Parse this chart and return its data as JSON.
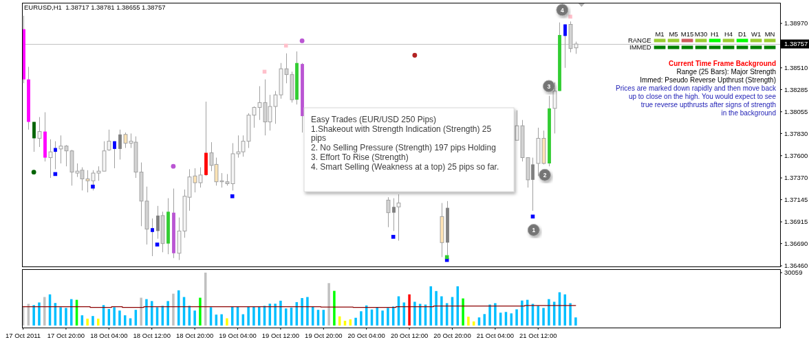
{
  "chart_data": [
    {
      "type": "candlestick",
      "title": "EURUSD,H1  1.38717 1.38781 1.38655 1.38757",
      "x": [
        "2011-10-17T12:00",
        "2011-10-17T13:00",
        "2011-10-17T14:00",
        "2011-10-17T15:00",
        "2011-10-17T16:00",
        "2011-10-17T17:00",
        "2011-10-17T18:00",
        "2011-10-17T19:00",
        "2011-10-17T20:00",
        "2011-10-17T21:00",
        "2011-10-17T22:00",
        "2011-10-17T23:00",
        "2011-10-18T00:00",
        "2011-10-18T01:00",
        "2011-10-18T02:00",
        "2011-10-18T03:00",
        "2011-10-18T04:00",
        "2011-10-18T05:00",
        "2011-10-18T06:00",
        "2011-10-18T07:00",
        "2011-10-18T08:00",
        "2011-10-18T09:00",
        "2011-10-18T10:00",
        "2011-10-18T11:00",
        "2011-10-18T12:00",
        "2011-10-18T13:00",
        "2011-10-18T14:00",
        "2011-10-18T15:00",
        "2011-10-18T16:00",
        "2011-10-18T17:00",
        "2011-10-18T18:00",
        "2011-10-18T19:00",
        "2011-10-18T20:00",
        "2011-10-18T21:00",
        "2011-10-18T22:00",
        "2011-10-18T23:00",
        "2011-10-19T00:00",
        "2011-10-19T01:00",
        "2011-10-19T02:00",
        "2011-10-19T03:00",
        "2011-10-19T04:00",
        "2011-10-19T05:00",
        "2011-10-19T06:00",
        "2011-10-19T07:00",
        "2011-10-19T08:00",
        "2011-10-19T09:00",
        "2011-10-19T10:00",
        "2011-10-19T11:00",
        "2011-10-19T12:00",
        "2011-10-19T13:00",
        "2011-10-19T14:00",
        "2011-10-19T15:00",
        "2011-10-19T16:00",
        "2011-10-20T08:00",
        "2011-10-20T09:00",
        "2011-10-20T10:00",
        "2011-10-20T18:00",
        "2011-10-20T19:00",
        "2011-10-21T08:00",
        "2011-10-21T09:00",
        "2011-10-21T10:00",
        "2011-10-21T11:00",
        "2011-10-21T12:00",
        "2011-10-21T13:00",
        "2011-10-21T14:00",
        "2011-10-21T15:00",
        "2011-10-21T16:00",
        "2011-10-21T17:00",
        "2011-10-21T18:00",
        "2011-10-21T19:00"
      ],
      "ohlc": [
        [
          1.3891,
          1.3905,
          1.3835,
          1.3839
        ],
        [
          1.3839,
          1.3852,
          1.3787,
          1.3795
        ],
        [
          1.3795,
          1.3795,
          1.3764,
          1.3778
        ],
        [
          1.3778,
          1.38,
          1.3769,
          1.3785
        ],
        [
          1.3785,
          1.3805,
          1.3754,
          1.3758
        ],
        [
          1.3758,
          1.3777,
          1.3737,
          1.3764
        ],
        [
          1.3764,
          1.3775,
          1.3746,
          1.3768
        ],
        [
          1.3767,
          1.3781,
          1.3752,
          1.377
        ],
        [
          1.377,
          1.3771,
          1.3749,
          1.3765
        ],
        [
          1.3765,
          1.3766,
          1.3729,
          1.3743
        ],
        [
          1.3742,
          1.3752,
          1.3738,
          1.3744
        ],
        [
          1.3745,
          1.3748,
          1.3724,
          1.3736
        ],
        [
          1.3736,
          1.3745,
          1.3722,
          1.3734
        ],
        [
          1.3734,
          1.3745,
          1.3724,
          1.3742
        ],
        [
          1.3742,
          1.3749,
          1.3734,
          1.3744
        ],
        [
          1.3744,
          1.3775,
          1.3744,
          1.3765
        ],
        [
          1.3766,
          1.3787,
          1.3765,
          1.3775
        ],
        [
          1.3775,
          1.3775,
          1.3747,
          1.3767
        ],
        [
          1.3767,
          1.3787,
          1.3756,
          1.3782
        ],
        [
          1.3782,
          1.3784,
          1.3768,
          1.3773
        ],
        [
          1.3773,
          1.3783,
          1.3768,
          1.3775
        ],
        [
          1.3774,
          1.378,
          1.3737,
          1.3743
        ],
        [
          1.3743,
          1.3753,
          1.3687,
          1.3713
        ],
        [
          1.3713,
          1.3728,
          1.3668,
          1.3684
        ],
        [
          1.3685,
          1.3695,
          1.3656,
          1.3681
        ],
        [
          1.3682,
          1.3708,
          1.3674,
          1.3698
        ],
        [
          1.3698,
          1.3702,
          1.366,
          1.3669
        ],
        [
          1.3669,
          1.3716,
          1.3658,
          1.3702
        ],
        [
          1.3701,
          1.3726,
          1.3654,
          1.3659
        ],
        [
          1.3659,
          1.3696,
          1.3652,
          1.3682
        ],
        [
          1.3682,
          1.3725,
          1.3675,
          1.3718
        ],
        [
          1.3717,
          1.3746,
          1.3703,
          1.3738
        ],
        [
          1.3739,
          1.3747,
          1.3722,
          1.3732
        ],
        [
          1.3732,
          1.3748,
          1.3727,
          1.374
        ],
        [
          1.374,
          1.3816,
          1.3739,
          1.3763
        ],
        [
          1.3763,
          1.3774,
          1.3744,
          1.375
        ],
        [
          1.3751,
          1.3758,
          1.3729,
          1.3733
        ],
        [
          1.3733,
          1.3742,
          1.3727,
          1.3734
        ],
        [
          1.3733,
          1.3741,
          1.3729,
          1.3731
        ],
        [
          1.3731,
          1.3773,
          1.3724,
          1.3762
        ],
        [
          1.3762,
          1.3781,
          1.3758,
          1.3764
        ],
        [
          1.3764,
          1.3781,
          1.3759,
          1.3775
        ],
        [
          1.3775,
          1.3804,
          1.3768,
          1.3802
        ],
        [
          1.3802,
          1.3811,
          1.3789,
          1.381
        ],
        [
          1.381,
          1.3832,
          1.3797,
          1.3815
        ],
        [
          1.3815,
          1.3839,
          1.3781,
          1.3795
        ],
        [
          1.3795,
          1.3823,
          1.3786,
          1.3811
        ],
        [
          1.3811,
          1.3827,
          1.3793,
          1.3823
        ],
        [
          1.3823,
          1.3856,
          1.3819,
          1.385
        ],
        [
          1.385,
          1.3866,
          1.3835,
          1.3844
        ],
        [
          1.3844,
          1.3847,
          1.3815,
          1.3818
        ],
        [
          1.3818,
          1.3868,
          1.3813,
          1.3856
        ],
        [
          1.3855,
          1.3856,
          1.3784,
          1.3801
        ],
        [
          1.3714,
          1.3717,
          1.3686,
          1.3701
        ],
        [
          1.3701,
          1.3716,
          1.3682,
          1.3707
        ],
        [
          1.3707,
          1.372,
          1.3672,
          1.3711
        ],
        [
          1.3697,
          1.3711,
          1.3655,
          1.367
        ],
        [
          1.367,
          1.3713,
          1.3657,
          1.3706
        ],
        [
          1.3776,
          1.3807,
          1.3776,
          1.3791
        ],
        [
          1.3791,
          1.3797,
          1.3754,
          1.3758
        ],
        [
          1.3758,
          1.3758,
          1.3727,
          1.3735
        ],
        [
          1.3735,
          1.3758,
          1.3703,
          1.3751
        ],
        [
          1.3752,
          1.3789,
          1.3739,
          1.3778
        ],
        [
          1.3778,
          1.3786,
          1.3751,
          1.3752
        ],
        [
          1.3752,
          1.3822,
          1.3749,
          1.3809
        ],
        [
          1.3809,
          1.3836,
          1.3783,
          1.3827
        ],
        [
          1.3827,
          1.3898,
          1.3827,
          1.3885
        ],
        [
          1.3884,
          1.3896,
          1.3851,
          1.3896
        ],
        [
          1.3896,
          1.3899,
          1.3867,
          1.3871
        ],
        [
          1.38717,
          1.38781,
          1.38655,
          1.38757
        ]
      ],
      "colors": [
        "#ff00ff",
        "#ff00ff",
        "#006400",
        "#f5f5f5",
        "#ff00ff",
        "#f5f5f5",
        "#0000ff",
        "#f5f5f5",
        "#d3d3d3",
        "#d3d3d3",
        "#f5f5f5",
        "#d3d3d3",
        "#ffe4b5",
        "#f5f5f5",
        "#f5f5f5",
        "#f5f5f5",
        "#f5f5f5",
        "#0000ff",
        "#808080",
        "#ffe4b5",
        "#f5f5f5",
        "#d3d3d3",
        "#d3d3d3",
        "#d3d3d3",
        "#0000ff",
        "#808080",
        "#d3d3d3",
        "#32cd32",
        "#ba55d3",
        "#f5f5f5",
        "#f5f5f5",
        "#f5f5f5",
        "#ffe4b5",
        "#f5f5f5",
        "#ff0000",
        "#d3d3d3",
        "#ffe4b5",
        "#f5f5f5",
        "#d3d3d3",
        "#f5f5f5",
        "#f5f5f5",
        "#f5f5f5",
        "#f5f5f5",
        "#f5f5f5",
        "#f5f5f5",
        "#d3d3d3",
        "#f5f5f5",
        "#f5f5f5",
        "#f5f5f5",
        "#d3d3d3",
        "#d3d3d3",
        "#32cd32",
        "#ba55d3",
        "#d3d3d3",
        "#808080",
        "#f5f5f5",
        "#ffe4b5",
        "#808080",
        "#f5f5f5",
        "#d3d3d3",
        "#d3d3d3",
        "#808080",
        "#f5f5f5",
        "#ffe4b5",
        "#32cd32",
        "#f5f5f5",
        "#32cd32",
        "#0000ff",
        "#d3d3d3",
        "#f5f5f5"
      ],
      "series": [
        {
          "type": "scatter",
          "marker": "circle",
          "color": "#006400",
          "x": [
            "2011-10-17T14:00"
          ],
          "values": [
            1.3743
          ]
        },
        {
          "type": "scatter",
          "marker": "square",
          "color": "#0000ff",
          "x": [
            "2011-10-17T18:00",
            "2011-10-18T01:00",
            "2011-10-18T13:00",
            "2011-10-19T03:00",
            "2011-10-20T09:00",
            "2011-10-20T19:00",
            "2011-10-21T11:00"
          ],
          "values": [
            1.3741,
            1.3728,
            1.3668,
            1.3718,
            1.3676,
            1.3652,
            1.3697
          ]
        },
        {
          "type": "scatter",
          "marker": "square",
          "color": "#32cd32",
          "x": [
            "2011-10-20T19:00"
          ],
          "values": [
            1.3655
          ]
        },
        {
          "type": "scatter",
          "marker": "circle",
          "color": "#ba55d3",
          "x": [
            "2011-10-18T16:00",
            "2011-10-19T16:00"
          ],
          "values": [
            1.3749,
            1.3879
          ]
        },
        {
          "type": "scatter",
          "marker": "square",
          "color": "#ffc0cb",
          "x": [
            "2011-10-19T09:00",
            "2011-10-19T13:00",
            "2011-10-21T18:00"
          ],
          "values": [
            1.3847,
            1.3874,
            1.3904
          ]
        },
        {
          "type": "scatter",
          "marker": "circle",
          "color": "#b22222",
          "x": [
            "2011-10-20T13:00"
          ],
          "values": [
            1.3864
          ]
        }
      ],
      "xlim": [
        "2011-10-17T11:48",
        "2011-10-23T09:06"
      ],
      "ylim": [
        1.36453,
        1.39184
      ],
      "yticks": [
        {
          "value": 1.3897,
          "label": "1.38970"
        },
        {
          "value": 1.3851,
          "label": "1.38510"
        },
        {
          "value": 1.38285,
          "label": "1.38285"
        },
        {
          "value": 1.38055,
          "label": "1.38055"
        },
        {
          "value": 1.3783,
          "label": "1.37830"
        },
        {
          "value": 1.376,
          "label": "1.37600"
        },
        {
          "value": 1.3737,
          "label": "1.37370"
        },
        {
          "value": 1.37145,
          "label": "1.37145"
        },
        {
          "value": 1.36915,
          "label": "1.36915"
        },
        {
          "value": 1.3669,
          "label": "1.36690"
        },
        {
          "value": 1.3646,
          "label": "1.36460"
        }
      ],
      "tick_labels": "y",
      "ref_lines": [
        {
          "axis": "y",
          "value": 1.38757,
          "label": "1.38757",
          "color": "#c0c0c0"
        }
      ],
      "annotations": [
        "Easy Trades (EUR/USD 250 Pips)",
        "1.Shakeout with Strength Indication (Strength) 25 pips",
        "2. No Selling Pressure (Strength) 197 pips Holding",
        "3. Effort To Rise (Strength)",
        "4. Smart Selling (Weakness at a top) 25 pips so far.",
        {
          "text": "1",
          "x": "2011-10-21T11:10",
          "y": 1.3683
        },
        {
          "text": "2",
          "x": "2011-10-21T13:15",
          "y": 1.374
        },
        {
          "text": "3",
          "x": "2011-10-21T14:00",
          "y": 1.3832
        },
        {
          "text": "4",
          "x": "2011-10-21T16:30",
          "y": 1.3911
        },
        "Current Time Frame Background",
        "Range (25 Bars): Major Strength",
        "Immed: Pseudo Reverse Upthrust (Strength)",
        "Prices are marked down rapidly and then move back",
        "up to close on the high. You would expect to see",
        "true reverse upthrusts after signs of strength",
        "in the background",
        "RANGE",
        "IMMED",
        "M1",
        "M5",
        "M15",
        "M30",
        "H1",
        "H4",
        "D1",
        "W1",
        "MN"
      ]
    },
    {
      "type": "bar",
      "x": [
        "2011-10-17T12:00",
        "2011-10-17T13:00",
        "2011-10-17T14:00",
        "2011-10-17T15:00",
        "2011-10-17T16:00",
        "2011-10-17T17:00",
        "2011-10-17T18:00",
        "2011-10-17T19:00",
        "2011-10-17T20:00",
        "2011-10-17T21:00",
        "2011-10-17T22:00",
        "2011-10-17T23:00",
        "2011-10-18T00:00",
        "2011-10-18T01:00",
        "2011-10-18T02:00",
        "2011-10-18T03:00",
        "2011-10-18T04:00",
        "2011-10-18T05:00",
        "2011-10-18T06:00",
        "2011-10-18T07:00",
        "2011-10-18T08:00",
        "2011-10-18T09:00",
        "2011-10-18T10:00",
        "2011-10-18T11:00",
        "2011-10-18T12:00",
        "2011-10-18T13:00",
        "2011-10-18T14:00",
        "2011-10-18T15:00",
        "2011-10-18T16:00",
        "2011-10-18T17:00",
        "2011-10-18T18:00",
        "2011-10-18T19:00",
        "2011-10-18T20:00",
        "2011-10-18T21:00",
        "2011-10-18T22:00",
        "2011-10-18T23:00",
        "2011-10-19T00:00",
        "2011-10-19T01:00",
        "2011-10-19T02:00",
        "2011-10-19T03:00",
        "2011-10-19T04:00",
        "2011-10-19T05:00",
        "2011-10-19T06:00",
        "2011-10-19T07:00",
        "2011-10-19T08:00",
        "2011-10-19T09:00",
        "2011-10-19T10:00",
        "2011-10-19T11:00",
        "2011-10-19T12:00",
        "2011-10-19T13:00",
        "2011-10-19T14:00",
        "2011-10-19T15:00",
        "2011-10-19T16:00",
        "2011-10-19T17:00",
        "2011-10-19T18:00",
        "2011-10-19T19:00",
        "2011-10-19T20:00",
        "2011-10-19T21:00",
        "2011-10-19T22:00",
        "2011-10-19T23:00",
        "2011-10-20T00:00",
        "2011-10-20T01:00",
        "2011-10-20T02:00",
        "2011-10-20T03:00",
        "2011-10-20T04:00",
        "2011-10-20T05:00",
        "2011-10-20T06:00",
        "2011-10-20T07:00",
        "2011-10-20T08:00",
        "2011-10-20T09:00",
        "2011-10-20T10:00",
        "2011-10-20T11:00",
        "2011-10-20T12:00",
        "2011-10-20T13:00",
        "2011-10-20T14:00",
        "2011-10-20T15:00",
        "2011-10-20T16:00",
        "2011-10-20T17:00",
        "2011-10-20T18:00",
        "2011-10-20T19:00",
        "2011-10-20T20:00",
        "2011-10-20T21:00",
        "2011-10-20T22:00",
        "2011-10-20T23:00",
        "2011-10-21T00:00",
        "2011-10-21T01:00",
        "2011-10-21T02:00",
        "2011-10-21T03:00",
        "2011-10-21T04:00",
        "2011-10-21T05:00",
        "2011-10-21T06:00",
        "2011-10-21T07:00",
        "2011-10-21T08:00",
        "2011-10-21T09:00",
        "2011-10-21T10:00",
        "2011-10-21T11:00",
        "2011-10-21T12:00",
        "2011-10-21T13:00",
        "2011-10-21T14:00",
        "2011-10-21T15:00",
        "2011-10-21T16:00",
        "2011-10-21T17:00",
        "2011-10-21T18:00",
        "2011-10-21T19:00"
      ],
      "series": [
        {
          "type": "bar",
          "values": [
            11100,
            12300,
            11600,
            13100,
            16200,
            17700,
            12800,
            10400,
            10000,
            15000,
            14600,
            5800,
            3900,
            5400,
            3900,
            11600,
            9400,
            10400,
            8500,
            5800,
            4100,
            8900,
            15800,
            15000,
            13900,
            10400,
            11200,
            13900,
            18100,
            20000,
            16200,
            11200,
            8500,
            15800,
            30059,
            10400,
            6200,
            6400,
            4100,
            10600,
            10600,
            6400,
            10600,
            10600,
            10600,
            11200,
            12400,
            12400,
            14100,
            9700,
            10200,
            13300,
            15600,
            16200,
            10800,
            8900,
            8900,
            24100,
            19700,
            5200,
            2700,
            3500,
            4400,
            8100,
            11400,
            9100,
            10400,
            8500,
            10000,
            10800,
            16600,
            13100,
            17700,
            13500,
            12300,
            11900,
            22300,
            19600,
            16600,
            12700,
            16200,
            22300,
            15400,
            5000,
            2300,
            4600,
            6500,
            11900,
            12700,
            7300,
            7700,
            6900,
            9200,
            14200,
            14600,
            12300,
            11200,
            10000,
            15000,
            13500,
            18900,
            17700,
            12700,
            4600
          ],
          "colors": [
            "#c0c0c0",
            "#c0c0c0",
            "#00bfff",
            "#00bfff",
            "#c0c0c0",
            "#00bfff",
            "#00bfff",
            "#00bfff",
            "#00bfff",
            "#00bfff",
            "#00ff00",
            "#00bfff",
            "#ffff00",
            "#00bfff",
            "#ffff00",
            "#00bfff",
            "#00bfff",
            "#00bfff",
            "#00bfff",
            "#00bfff",
            "#00bfff",
            "#00bfff",
            "#c0c0c0",
            "#00bfff",
            "#00bfff",
            "#00bfff",
            "#00bfff",
            "#00bfff",
            "#c0c0c0",
            "#00bfff",
            "#00bfff",
            "#00bfff",
            "#00bfff",
            "#00ff00",
            "#c0c0c0",
            "#00bfff",
            "#00bfff",
            "#00bfff",
            "#ffff00",
            "#00bfff",
            "#00bfff",
            "#00bfff",
            "#00bfff",
            "#00bfff",
            "#00bfff",
            "#00bfff",
            "#00bfff",
            "#00bfff",
            "#00bfff",
            "#00bfff",
            "#00bfff",
            "#00bfff",
            "#00bfff",
            "#00bfff",
            "#00bfff",
            "#00bfff",
            "#00bfff",
            "#c0c0c0",
            "#00ff00",
            "#ffff00",
            "#ffff00",
            "#ffff00",
            "#00bfff",
            "#00bfff",
            "#00bfff",
            "#00bfff",
            "#00bfff",
            "#00bfff",
            "#00bfff",
            "#00bfff",
            "#00bfff",
            "#00bfff",
            "#ff0000",
            "#00bfff",
            "#00bfff",
            "#00bfff",
            "#00bfff",
            "#00bfff",
            "#00bfff",
            "#00bfff",
            "#00bfff",
            "#00bfff",
            "#00ff00",
            "#ffff00",
            "#ffff00",
            "#00bfff",
            "#00bfff",
            "#00bfff",
            "#00bfff",
            "#00bfff",
            "#00bfff",
            "#00bfff",
            "#00bfff",
            "#00bfff",
            "#00bfff",
            "#00bfff",
            "#00bfff",
            "#00bfff",
            "#00bfff",
            "#00bfff",
            "#00bfff",
            "#00bfff",
            "#00bfff",
            "#00bfff"
          ]
        },
        {
          "type": "step",
          "color": "#8b0000",
          "values": [
            10700,
            10700,
            10700,
            10700,
            10700,
            10700,
            10700,
            10700,
            10700,
            10700,
            10700,
            10700,
            10700,
            10300,
            10300,
            10300,
            10300,
            10700,
            10700,
            10300,
            10300,
            10300,
            10300,
            10700,
            10700,
            10700,
            10700,
            10700,
            10700,
            10700,
            10700,
            10700,
            10700,
            10700,
            10700,
            10700,
            10700,
            10700,
            10700,
            10700,
            10700,
            10700,
            10700,
            10700,
            10700,
            10700,
            10700,
            10700,
            10700,
            10700,
            10700,
            10700,
            10700,
            10700,
            10700,
            10700,
            10500,
            10500,
            10500,
            10500,
            10500,
            10500,
            10300,
            10300,
            10300,
            10300,
            10300,
            10300,
            10300,
            10300,
            10700,
            10700,
            10700,
            10700,
            10700,
            10700,
            10700,
            11100,
            11100,
            11100,
            11100,
            11100,
            11100,
            11100,
            11100,
            11100,
            11100,
            11100,
            11100,
            11100,
            11100,
            11100,
            11100,
            11100,
            11400,
            11400,
            11400,
            11400,
            11400,
            11400,
            11400,
            11400,
            11400,
            11400
          ]
        }
      ],
      "xlim": [
        "2011-10-17T11:48",
        "2011-10-23T09:06"
      ],
      "xticks": [
        {
          "value": "2011-10-17T12:00",
          "label": "17 Oct 2011"
        },
        {
          "value": "2011-10-17T20:00",
          "label": "17 Oct 20:00"
        },
        {
          "value": "2011-10-18T04:00",
          "label": "18 Oct 04:00"
        },
        {
          "value": "2011-10-18T12:00",
          "label": "18 Oct 12:00"
        },
        {
          "value": "2011-10-18T20:00",
          "label": "18 Oct 20:00"
        },
        {
          "value": "2011-10-19T04:00",
          "label": "19 Oct 04:00"
        },
        {
          "value": "2011-10-19T12:00",
          "label": "19 Oct 12:00"
        },
        {
          "value": "2011-10-19T20:00",
          "label": "19 Oct 20:00"
        },
        {
          "value": "2011-10-20T04:00",
          "label": "20 Oct 04:00"
        },
        {
          "value": "2011-10-20T12:00",
          "label": "20 Oct 12:00"
        },
        {
          "value": "2011-10-20T20:00",
          "label": "20 Oct 20:00"
        },
        {
          "value": "2011-10-21T04:00",
          "label": "21 Oct 04:00"
        },
        {
          "value": "2011-10-21T12:00",
          "label": "21 Oct 12:00"
        }
      ],
      "ylim": [
        0,
        30059
      ],
      "yticks": [
        30059
      ]
    }
  ]
}
